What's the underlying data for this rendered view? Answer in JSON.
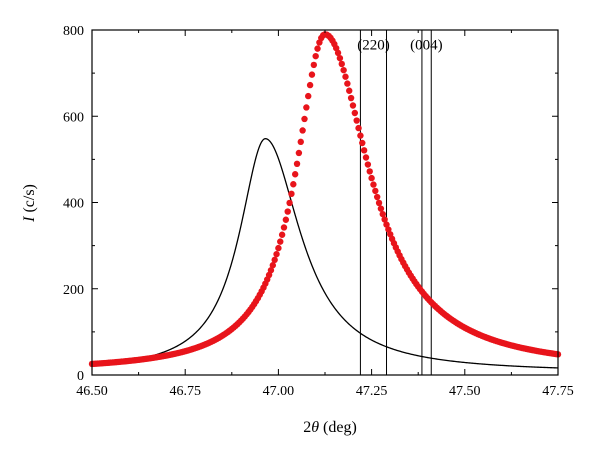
{
  "chart_data": {
    "type": "line",
    "title": "",
    "xlabel_prefix": "2",
    "xlabel_symbol": "θ",
    "xlabel_suffix": " (deg)",
    "ylabel_symbol": "I",
    "ylabel_suffix": " (c/s)",
    "xlim": [
      46.5,
      47.75
    ],
    "ylim": [
      0,
      800
    ],
    "xticks": [
      46.5,
      46.75,
      47.0,
      47.25,
      47.5,
      47.75
    ],
    "xtick_labels": [
      "46.50",
      "46.75",
      "47.00",
      "47.25",
      "47.50",
      "47.75"
    ],
    "yticks": [
      0,
      200,
      400,
      600,
      800
    ],
    "ytick_labels": [
      "0",
      "200",
      "400",
      "600",
      "800"
    ],
    "grid": false,
    "series": [
      {
        "kind": "line",
        "color": "#000000",
        "peak_x": 46.965,
        "peak_y": 548,
        "baseline": 5,
        "hwhm_left": 0.085,
        "hwhm_right": 0.115,
        "x_range": [
          46.5,
          47.75
        ]
      },
      {
        "kind": "scatter",
        "color": "#e8141b",
        "peak_x": 47.125,
        "peak_y": 790,
        "baseline": 8,
        "hwhm_left": 0.095,
        "hwhm_right": 0.145,
        "x_range": [
          46.5,
          47.75
        ],
        "step": 0.005
      }
    ],
    "reference_lines": [
      47.22,
      47.29,
      47.385,
      47.41
    ],
    "annotations": [
      {
        "text": "(220)",
        "x": 47.255,
        "y": 755
      },
      {
        "text": "(004)",
        "x": 47.397,
        "y": 755
      }
    ]
  }
}
